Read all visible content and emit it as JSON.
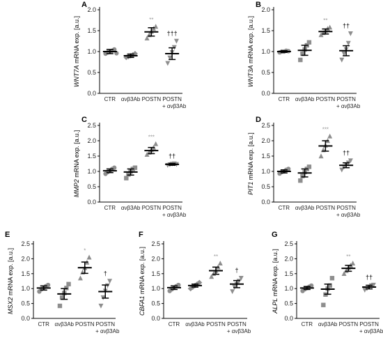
{
  "colors": {
    "point": "#8e8e8e",
    "bar": "#000000",
    "axis": "#000000",
    "star": "#9a9a9a"
  },
  "chart_data": [
    {
      "panel": "A",
      "type": "scatter",
      "ylabel_gene": "WNT7A",
      "ylabel_rest": " mRNA exp. [a.u.]",
      "ylim": [
        0,
        2.0
      ],
      "yticks": [
        "0.0",
        "0.5",
        "1.0",
        "1.5",
        "2.0"
      ],
      "categories": [
        {
          "label": "CTR",
          "sub": "",
          "marker": "circle",
          "mean": 1.0,
          "err": 0.05,
          "points": [
            0.95,
            0.98,
            1.0,
            1.02,
            1.05,
            0.96
          ],
          "sig": "",
          "dag": ""
        },
        {
          "label": "αvβ3Ab",
          "sub": "",
          "marker": "diamond",
          "mean": 0.9,
          "err": 0.04,
          "points": [
            0.86,
            0.88,
            0.9,
            0.92,
            0.95
          ],
          "sig": "",
          "dag": ""
        },
        {
          "label": "POSTN",
          "sub": "",
          "marker": "triangle",
          "mean": 1.47,
          "err": 0.1,
          "points": [
            1.32,
            1.4,
            1.48,
            1.55,
            1.6
          ],
          "sig": "**",
          "dag": ""
        },
        {
          "label": "POSTN",
          "sub": "+ αvβ3Ab",
          "marker": "invtriangle",
          "mean": 0.95,
          "err": 0.14,
          "points": [
            0.72,
            0.85,
            0.98,
            1.1,
            1.25
          ],
          "sig": "",
          "dag": "†††"
        }
      ]
    },
    {
      "panel": "B",
      "type": "scatter",
      "ylabel_gene": "WNT3A",
      "ylabel_rest": " mRNA exp. [a.u.]",
      "ylim": [
        0,
        2.0
      ],
      "yticks": [
        "0.0",
        "0.5",
        "1.0",
        "1.5",
        "2.0"
      ],
      "categories": [
        {
          "label": "CTR",
          "sub": "",
          "marker": "circle",
          "mean": 1.0,
          "err": 0.02,
          "points": [
            0.98,
            1.0,
            1.0,
            1.02,
            1.01
          ],
          "sig": "",
          "dag": ""
        },
        {
          "label": "αvβ3Ab",
          "sub": "",
          "marker": "square",
          "mean": 1.03,
          "err": 0.12,
          "points": [
            0.8,
            0.95,
            1.05,
            1.15,
            1.22
          ],
          "sig": "",
          "dag": ""
        },
        {
          "label": "POSTN",
          "sub": "",
          "marker": "triangle",
          "mean": 1.48,
          "err": 0.06,
          "points": [
            1.4,
            1.45,
            1.5,
            1.55,
            1.58
          ],
          "sig": "**",
          "dag": ""
        },
        {
          "label": "POSTN",
          "sub": "+ αvβ3Ab",
          "marker": "invtriangle",
          "mean": 1.02,
          "err": 0.12,
          "points": [
            0.8,
            0.95,
            1.05,
            1.2,
            1.43
          ],
          "sig": "",
          "dag": "††"
        }
      ]
    },
    {
      "panel": "C",
      "type": "scatter",
      "ylabel_gene": "MMP2",
      "ylabel_rest": " mRNA exp. [a.u.]",
      "ylim": [
        0,
        2.5
      ],
      "yticks": [
        "0.0",
        "0.5",
        "1.0",
        "1.5",
        "2.0",
        "2.5"
      ],
      "categories": [
        {
          "label": "CTR",
          "sub": "",
          "marker": "circle",
          "mean": 1.02,
          "err": 0.06,
          "points": [
            0.92,
            0.98,
            1.02,
            1.08,
            1.12
          ],
          "sig": "",
          "dag": ""
        },
        {
          "label": "αvβ3Ab",
          "sub": "",
          "marker": "square",
          "mean": 0.98,
          "err": 0.1,
          "points": [
            0.78,
            0.9,
            1.0,
            1.08,
            1.12
          ],
          "sig": "",
          "dag": ""
        },
        {
          "label": "POSTN",
          "sub": "",
          "marker": "triangle",
          "mean": 1.68,
          "err": 0.1,
          "points": [
            1.55,
            1.62,
            1.7,
            1.78,
            1.9
          ],
          "sig": "***",
          "dag": ""
        },
        {
          "label": "POSTN",
          "sub": "+ αvβ3Ab",
          "marker": "invtriangle",
          "mean": 1.23,
          "err": 0.03,
          "points": [
            1.2,
            1.22,
            1.24,
            1.25,
            1.23
          ],
          "sig": "",
          "dag": "††"
        }
      ]
    },
    {
      "panel": "D",
      "type": "scatter",
      "ylabel_gene": "PIT1",
      "ylabel_rest": " mRNA exp. [a.u.]",
      "ylim": [
        0,
        2.5
      ],
      "yticks": [
        "0.0",
        "0.5",
        "1.0",
        "1.5",
        "2.0",
        "2.5"
      ],
      "categories": [
        {
          "label": "CTR",
          "sub": "",
          "marker": "circle",
          "mean": 1.0,
          "err": 0.05,
          "points": [
            0.93,
            0.98,
            1.0,
            1.05,
            1.08
          ],
          "sig": "",
          "dag": ""
        },
        {
          "label": "αvβ3Ab",
          "sub": "",
          "marker": "square",
          "mean": 0.95,
          "err": 0.13,
          "points": [
            0.7,
            0.85,
            0.98,
            1.08,
            1.15
          ],
          "sig": "",
          "dag": ""
        },
        {
          "label": "POSTN",
          "sub": "",
          "marker": "triangle",
          "mean": 1.83,
          "err": 0.17,
          "points": [
            1.5,
            1.7,
            1.85,
            2.0,
            2.15
          ],
          "sig": "***",
          "dag": ""
        },
        {
          "label": "POSTN",
          "sub": "+ αvβ3Ab",
          "marker": "invtriangle",
          "mean": 1.2,
          "err": 0.08,
          "points": [
            1.05,
            1.15,
            1.22,
            1.28,
            1.35
          ],
          "sig": "",
          "dag": "††"
        }
      ]
    },
    {
      "panel": "E",
      "type": "scatter",
      "ylabel_gene": "MSX2",
      "ylabel_rest": " mRNA exp. [a.u.]",
      "ylim": [
        0,
        2.5
      ],
      "yticks": [
        "0.0",
        "0.5",
        "1.0",
        "1.5",
        "2.0",
        "2.5"
      ],
      "categories": [
        {
          "label": "CTR",
          "sub": "",
          "marker": "circle",
          "mean": 1.02,
          "err": 0.07,
          "points": [
            0.9,
            0.98,
            1.03,
            1.08,
            1.12
          ],
          "sig": "",
          "dag": ""
        },
        {
          "label": "αvβ3Ab",
          "sub": "",
          "marker": "square",
          "mean": 0.82,
          "err": 0.18,
          "points": [
            0.42,
            0.7,
            0.85,
            1.02,
            1.15
          ],
          "sig": "",
          "dag": ""
        },
        {
          "label": "POSTN",
          "sub": "",
          "marker": "triangle",
          "mean": 1.7,
          "err": 0.19,
          "points": [
            1.35,
            1.55,
            1.7,
            1.88,
            2.05
          ],
          "sig": "*",
          "dag": ""
        },
        {
          "label": "POSTN",
          "sub": "+ αvβ3Ab",
          "marker": "invtriangle",
          "mean": 0.9,
          "err": 0.22,
          "points": [
            0.42,
            0.7,
            0.92,
            1.1,
            1.25
          ],
          "sig": "",
          "dag": "†"
        }
      ]
    },
    {
      "panel": "F",
      "type": "scatter",
      "ylabel_gene": "CBFA1",
      "ylabel_rest": " mRNA exp. [a.u.]",
      "ylim": [
        0,
        2.5
      ],
      "yticks": [
        "0.0",
        "0.5",
        "1.0",
        "1.5",
        "2.0",
        "2.5"
      ],
      "categories": [
        {
          "label": "CTR",
          "sub": "",
          "marker": "circle",
          "mean": 1.03,
          "err": 0.06,
          "points": [
            0.92,
            0.98,
            1.03,
            1.08,
            1.12
          ],
          "sig": "",
          "dag": ""
        },
        {
          "label": "αvβ3Ab",
          "sub": "",
          "marker": "diamond",
          "mean": 1.1,
          "err": 0.05,
          "points": [
            1.0,
            1.05,
            1.1,
            1.15,
            1.2
          ],
          "sig": "",
          "dag": ""
        },
        {
          "label": "POSTN",
          "sub": "",
          "marker": "triangle",
          "mean": 1.6,
          "err": 0.12,
          "points": [
            1.4,
            1.5,
            1.6,
            1.72,
            1.85
          ],
          "sig": "**",
          "dag": ""
        },
        {
          "label": "POSTN",
          "sub": "+ αvβ3Ab",
          "marker": "invtriangle",
          "mean": 1.15,
          "err": 0.12,
          "points": [
            0.9,
            1.05,
            1.15,
            1.25,
            1.35
          ],
          "sig": "",
          "dag": "†"
        }
      ]
    },
    {
      "panel": "G",
      "type": "scatter",
      "ylabel_gene": "ALPL",
      "ylabel_rest": " mRNA exp. [a.u.]",
      "ylim": [
        0,
        2.5
      ],
      "yticks": [
        "0.0",
        "0.5",
        "1.0",
        "1.5",
        "2.0",
        "2.5"
      ],
      "categories": [
        {
          "label": "CTR",
          "sub": "",
          "marker": "circle",
          "mean": 1.02,
          "err": 0.05,
          "points": [
            0.92,
            0.98,
            1.02,
            1.06,
            1.1
          ],
          "sig": "",
          "dag": ""
        },
        {
          "label": "αvβ3Ab",
          "sub": "",
          "marker": "square",
          "mean": 0.98,
          "err": 0.17,
          "points": [
            0.45,
            0.8,
            1.0,
            1.1,
            1.35
          ],
          "sig": "",
          "dag": ""
        },
        {
          "label": "POSTN",
          "sub": "",
          "marker": "triangle",
          "mean": 1.68,
          "err": 0.1,
          "points": [
            1.5,
            1.6,
            1.7,
            1.78,
            1.85
          ],
          "sig": "**",
          "dag": ""
        },
        {
          "label": "POSTN",
          "sub": "+ αvβ3Ab",
          "marker": "invtriangle",
          "mean": 1.05,
          "err": 0.06,
          "points": [
            0.95,
            1.0,
            1.05,
            1.1,
            1.12
          ],
          "sig": "",
          "dag": "††"
        }
      ]
    }
  ]
}
